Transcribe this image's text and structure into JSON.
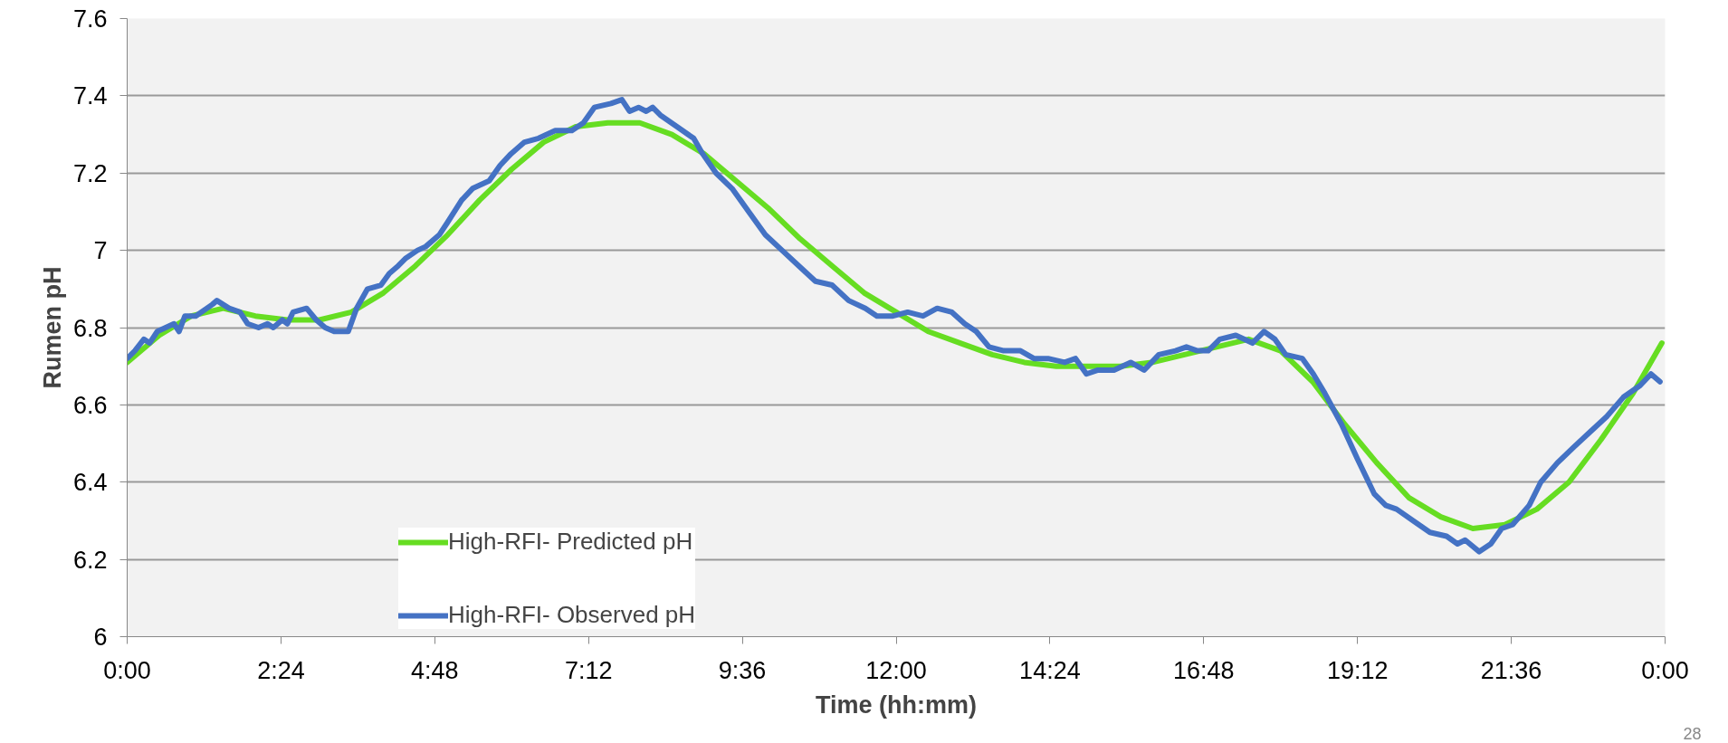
{
  "chart_data": {
    "type": "line",
    "xlabel": "Time (hh:mm)",
    "ylabel": "Rumen pH",
    "xlim": [
      0,
      24
    ],
    "ylim": [
      6,
      7.6
    ],
    "xticks": [
      {
        "value": 0,
        "label": "0:00"
      },
      {
        "value": 2.4,
        "label": "2:24"
      },
      {
        "value": 4.8,
        "label": "4:48"
      },
      {
        "value": 7.2,
        "label": "7:12"
      },
      {
        "value": 9.6,
        "label": "9:36"
      },
      {
        "value": 12,
        "label": "12:00"
      },
      {
        "value": 14.4,
        "label": "14:24"
      },
      {
        "value": 16.8,
        "label": "16:48"
      },
      {
        "value": 19.2,
        "label": "19:12"
      },
      {
        "value": 21.6,
        "label": "21:36"
      },
      {
        "value": 24,
        "label": "0:00"
      }
    ],
    "yticks": [
      6,
      6.2,
      6.4,
      6.6,
      6.8,
      7,
      7.2,
      7.4,
      7.6
    ],
    "grid": "y",
    "legend": "bottom left",
    "marker": "none",
    "line_style": "solid",
    "annotations": [
      "28"
    ],
    "series": [
      {
        "name": "High-RFI- Predicted pH",
        "color": "#66dd22",
        "x": [
          0,
          0.5,
          1,
          1.5,
          2,
          2.5,
          3,
          3.5,
          4,
          4.5,
          5,
          5.5,
          6,
          6.5,
          7,
          7.5,
          8,
          8.5,
          9,
          9.5,
          10,
          10.5,
          11,
          11.5,
          12,
          12.5,
          13,
          13.5,
          14,
          14.5,
          15,
          15.5,
          16,
          16.5,
          17,
          17.5,
          18,
          18.5,
          19,
          19.5,
          20,
          20.5,
          21,
          21.5,
          22,
          22.5,
          23,
          23.5,
          23.95
        ],
        "values": [
          6.71,
          6.78,
          6.83,
          6.85,
          6.83,
          6.82,
          6.82,
          6.84,
          6.89,
          6.96,
          7.04,
          7.13,
          7.21,
          7.28,
          7.32,
          7.33,
          7.33,
          7.3,
          7.25,
          7.18,
          7.11,
          7.03,
          6.96,
          6.89,
          6.84,
          6.79,
          6.76,
          6.73,
          6.71,
          6.7,
          6.7,
          6.7,
          6.71,
          6.73,
          6.75,
          6.77,
          6.74,
          6.66,
          6.55,
          6.45,
          6.36,
          6.31,
          6.28,
          6.29,
          6.33,
          6.4,
          6.51,
          6.63,
          6.76
        ]
      },
      {
        "name": "High-RFI- Observed pH",
        "color": "#4472c4",
        "x": [
          0,
          0.12,
          0.26,
          0.35,
          0.47,
          0.73,
          0.81,
          0.9,
          1.07,
          1.33,
          1.4,
          1.59,
          1.76,
          1.88,
          2.05,
          2.19,
          2.28,
          2.42,
          2.5,
          2.59,
          2.8,
          2.95,
          3.09,
          3.23,
          3.45,
          3.58,
          3.75,
          3.96,
          4.09,
          4.23,
          4.35,
          4.53,
          4.66,
          4.87,
          4.99,
          5.22,
          5.39,
          5.65,
          5.82,
          5.99,
          6.2,
          6.42,
          6.68,
          6.94,
          7.12,
          7.29,
          7.55,
          7.72,
          7.84,
          7.98,
          8.1,
          8.2,
          8.32,
          8.58,
          8.84,
          8.98,
          9.19,
          9.44,
          9.7,
          9.96,
          10.22,
          10.48,
          10.74,
          11.0,
          11.26,
          11.52,
          11.7,
          11.95,
          12.18,
          12.42,
          12.64,
          12.87,
          13.07,
          13.25,
          13.45,
          13.68,
          13.94,
          14.15,
          14.37,
          14.63,
          14.8,
          14.97,
          15.15,
          15.4,
          15.66,
          15.87,
          16.1,
          16.36,
          16.53,
          16.7,
          16.87,
          17.05,
          17.3,
          17.56,
          17.74,
          17.91,
          18.08,
          18.34,
          18.51,
          18.69,
          18.95,
          19.2,
          19.46,
          19.64,
          19.81,
          20.07,
          20.33,
          20.59,
          20.76,
          20.88,
          21.1,
          21.28,
          21.45,
          21.62,
          21.88,
          22.06,
          22.32,
          22.57,
          22.83,
          23.09,
          23.35,
          23.61,
          23.78,
          23.92
        ],
        "values": [
          6.72,
          6.74,
          6.77,
          6.76,
          6.79,
          6.81,
          6.79,
          6.83,
          6.83,
          6.86,
          6.87,
          6.85,
          6.84,
          6.81,
          6.8,
          6.81,
          6.8,
          6.82,
          6.81,
          6.84,
          6.85,
          6.82,
          6.8,
          6.79,
          6.79,
          6.85,
          6.9,
          6.91,
          6.94,
          6.96,
          6.98,
          7.0,
          7.01,
          7.04,
          7.07,
          7.13,
          7.16,
          7.18,
          7.22,
          7.25,
          7.28,
          7.29,
          7.31,
          7.31,
          7.33,
          7.37,
          7.38,
          7.39,
          7.36,
          7.37,
          7.36,
          7.37,
          7.35,
          7.32,
          7.29,
          7.25,
          7.2,
          7.16,
          7.1,
          7.04,
          7.0,
          6.96,
          6.92,
          6.91,
          6.87,
          6.85,
          6.83,
          6.83,
          6.84,
          6.83,
          6.85,
          6.84,
          6.81,
          6.79,
          6.75,
          6.74,
          6.74,
          6.72,
          6.72,
          6.71,
          6.72,
          6.68,
          6.69,
          6.69,
          6.71,
          6.69,
          6.73,
          6.74,
          6.75,
          6.74,
          6.74,
          6.77,
          6.78,
          6.76,
          6.79,
          6.77,
          6.73,
          6.72,
          6.68,
          6.63,
          6.55,
          6.46,
          6.37,
          6.34,
          6.33,
          6.3,
          6.27,
          6.26,
          6.24,
          6.25,
          6.22,
          6.24,
          6.28,
          6.29,
          6.34,
          6.4,
          6.45,
          6.49,
          6.53,
          6.57,
          6.62,
          6.65,
          6.68,
          6.66
        ]
      }
    ]
  }
}
